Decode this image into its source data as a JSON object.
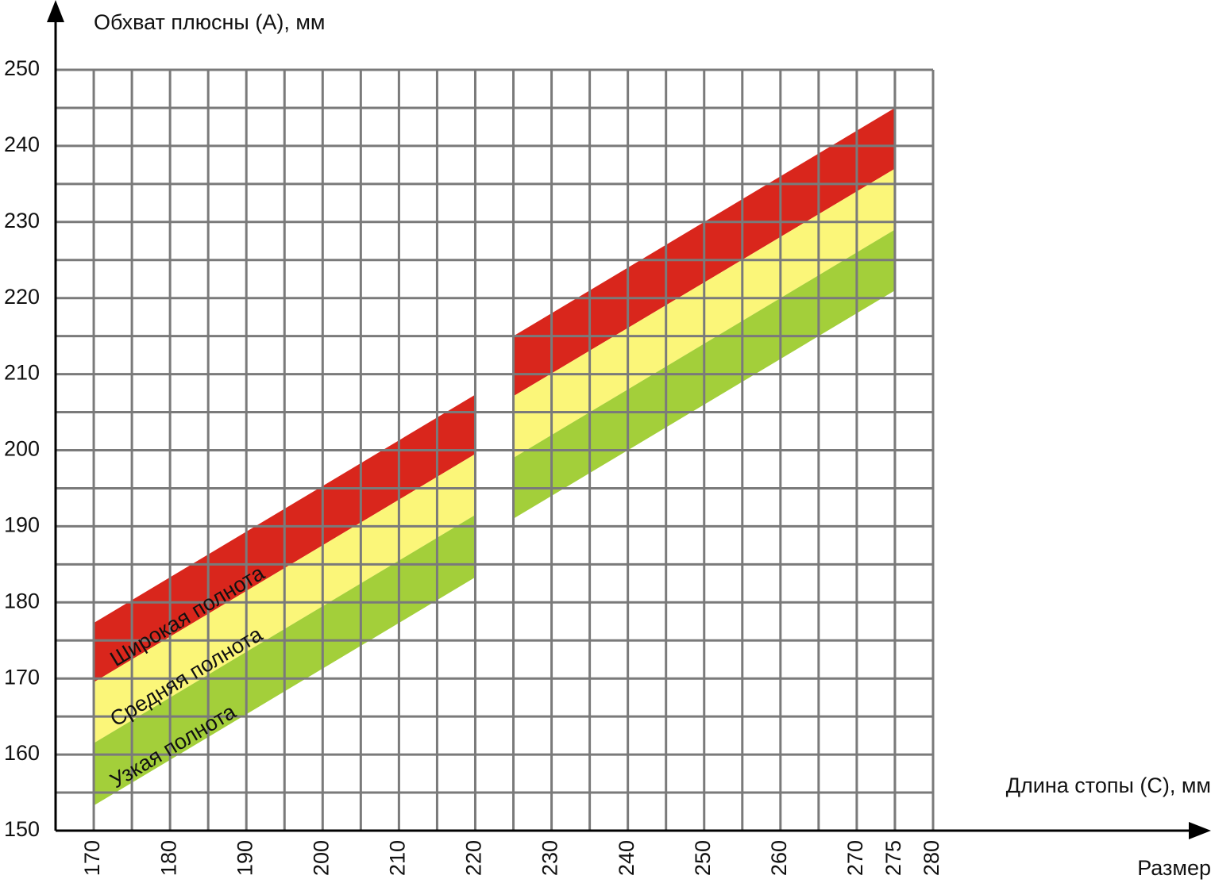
{
  "chart_data": {
    "type": "band",
    "y_label": "Обхват плюсны (А), мм",
    "x_label": "Длина стопы (С), мм",
    "x_label2": "Размер",
    "xlim": [
      165,
      280
    ],
    "ylim": [
      150,
      250
    ],
    "xticks": [
      170,
      180,
      190,
      200,
      210,
      220,
      230,
      240,
      250,
      260,
      270,
      275,
      280
    ],
    "yticks": [
      150,
      160,
      170,
      180,
      190,
      200,
      210,
      220,
      230,
      240,
      250
    ],
    "xminorticks": [
      175,
      185,
      195,
      205,
      215,
      225,
      235,
      245,
      255,
      265,
      275
    ],
    "yminorticks": [
      155,
      165,
      175,
      185,
      195,
      205,
      215,
      225,
      235,
      245
    ],
    "grid": true,
    "grid_color": "#7a7a7a",
    "highlight_xtick": 275,
    "highlight_color": "#d9261c",
    "series": [
      {
        "name": "Широкая полнота",
        "color": "#d9261c",
        "segments": [
          {
            "x": [
              170,
              220
            ],
            "lower": [
              169.5,
              199.5
            ],
            "upper": [
              177.3,
              207.3
            ]
          },
          {
            "x": [
              225,
              275
            ],
            "lower": [
              207.1,
              237.0
            ],
            "upper": [
              215.0,
              245.0
            ]
          }
        ]
      },
      {
        "name": "Средняя полнота",
        "color": "#fbf679",
        "segments": [
          {
            "x": [
              170,
              220
            ],
            "lower": [
              161.5,
              191.5
            ],
            "upper": [
              169.5,
              199.5
            ]
          },
          {
            "x": [
              225,
              275
            ],
            "lower": [
              199.0,
              229.0
            ],
            "upper": [
              207.1,
              237.0
            ]
          }
        ]
      },
      {
        "name": "Узкая полнота",
        "color": "#a3cf3a",
        "segments": [
          {
            "x": [
              170,
              220
            ],
            "lower": [
              153.3,
              183.3
            ],
            "upper": [
              161.5,
              191.5
            ]
          },
          {
            "x": [
              225,
              275
            ],
            "lower": [
              191.0,
              221.0
            ],
            "upper": [
              199.0,
              229.0
            ]
          }
        ]
      }
    ]
  }
}
